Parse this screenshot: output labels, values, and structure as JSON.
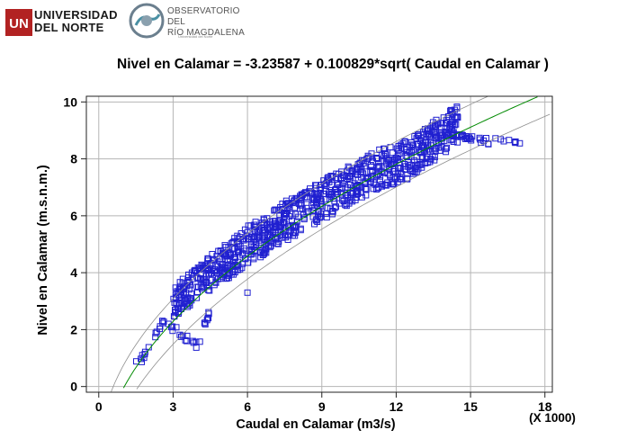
{
  "header": {
    "university": {
      "line1": "UNIVERSIDAD",
      "line2": "DEL NORTE"
    },
    "observatory": {
      "line1": "OBSERVATORIO DEL",
      "line2": "RÍO MAGDALENA",
      "sub": "Universidad del Norte"
    }
  },
  "chart_data": {
    "type": "scatter",
    "title": "Nivel en Calamar  = -3.23587 + 0.100829*sqrt( Caudal en Calamar )",
    "xlabel": "Caudal en Calamar (m3/s)",
    "ylabel": "Nivel en Calamar (m.s.n.m.)",
    "x_multiplier_label": "(X 1000)",
    "x_scale": 1000,
    "xlim": [
      -0.5,
      18.3
    ],
    "ylim": [
      -0.2,
      10.2
    ],
    "xticks": [
      0,
      3,
      6,
      9,
      12,
      15,
      18
    ],
    "yticks": [
      0,
      2,
      4,
      6,
      8,
      10
    ],
    "grid": true,
    "model": {
      "intercept": -3.23587,
      "coef": 0.100829,
      "transform": "sqrt"
    },
    "colors": {
      "points": "#2020d0",
      "fit": "#008a00",
      "limits": "#909090",
      "grid": "#b5b5b5"
    },
    "series": [
      {
        "kind": "observations",
        "x_range": [
          1.5,
          17.0
        ],
        "samples": [
          [
            1.5,
            0.95
          ],
          [
            1.8,
            1.0
          ],
          [
            2.0,
            1.4
          ],
          [
            2.3,
            1.8
          ],
          [
            2.6,
            2.3
          ],
          [
            3.0,
            2.9
          ],
          [
            3.5,
            3.3
          ],
          [
            4.0,
            3.6
          ],
          [
            4.5,
            4.0
          ],
          [
            5.0,
            4.3
          ],
          [
            5.5,
            4.6
          ],
          [
            6.0,
            5.0
          ],
          [
            6.5,
            5.2
          ],
          [
            7.0,
            5.5
          ],
          [
            7.5,
            5.8
          ],
          [
            8.0,
            6.0
          ],
          [
            8.5,
            6.3
          ],
          [
            9.0,
            6.5
          ],
          [
            9.5,
            6.8
          ],
          [
            10.0,
            7.0
          ],
          [
            10.5,
            7.3
          ],
          [
            11.0,
            7.5
          ],
          [
            11.5,
            7.7
          ],
          [
            12.0,
            7.8
          ],
          [
            12.5,
            8.0
          ],
          [
            13.0,
            8.3
          ],
          [
            13.5,
            8.6
          ],
          [
            14.0,
            8.9
          ],
          [
            14.5,
            9.3
          ],
          [
            15.0,
            8.75
          ],
          [
            16.0,
            8.5
          ],
          [
            17.0,
            8.6
          ],
          [
            4.0,
            1.4
          ],
          [
            4.2,
            2.0
          ],
          [
            4.5,
            2.7
          ],
          [
            6.0,
            3.3
          ]
        ]
      },
      {
        "kind": "fit",
        "x_range": [
          1.0,
          17.7
        ]
      },
      {
        "kind": "prediction_limits",
        "offset": 0.8
      }
    ]
  }
}
